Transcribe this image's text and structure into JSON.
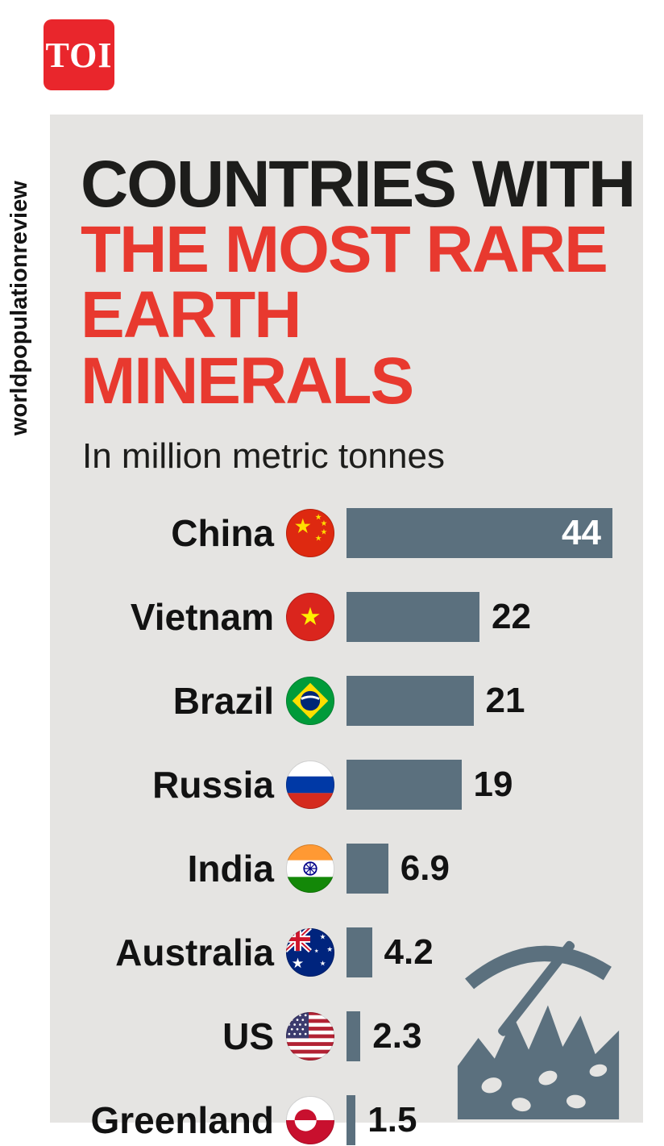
{
  "branding": {
    "logo_text": "TOI",
    "source_vertical": "worldpopulationreview"
  },
  "colors": {
    "bar": "#5b707e",
    "accent_red": "#e8392f",
    "panel_bg": "#e5e4e2",
    "logo_bg": "#e9262c",
    "text": "#1d1d1b"
  },
  "chart_data": {
    "type": "bar",
    "orientation": "horizontal",
    "title_line1": "COUNTRIES WITH",
    "title_line2": "THE MOST RARE",
    "title_line3": "EARTH MINERALS",
    "subtitle": "In million metric tonnes",
    "unit": "million metric tonnes",
    "xlim": [
      0,
      44
    ],
    "max_value": 44,
    "categories": [
      "China",
      "Vietnam",
      "Brazil",
      "Russia",
      "India",
      "Australia",
      "US",
      "Greenland"
    ],
    "values": [
      44,
      22,
      21,
      19,
      6.9,
      4.2,
      2.3,
      1.5
    ],
    "rows": [
      {
        "country": "China",
        "value": 44,
        "display": "44",
        "flag": "china-flag-icon",
        "value_position": "inside"
      },
      {
        "country": "Vietnam",
        "value": 22,
        "display": "22",
        "flag": "vietnam-flag-icon",
        "value_position": "outside"
      },
      {
        "country": "Brazil",
        "value": 21,
        "display": "21",
        "flag": "brazil-flag-icon",
        "value_position": "outside"
      },
      {
        "country": "Russia",
        "value": 19,
        "display": "19",
        "flag": "russia-flag-icon",
        "value_position": "outside"
      },
      {
        "country": "India",
        "value": 6.9,
        "display": "6.9",
        "flag": "india-flag-icon",
        "value_position": "outside"
      },
      {
        "country": "Australia",
        "value": 4.2,
        "display": "4.2",
        "flag": "australia-flag-icon",
        "value_position": "outside"
      },
      {
        "country": "US",
        "value": 2.3,
        "display": "2.3",
        "flag": "us-flag-icon",
        "value_position": "outside"
      },
      {
        "country": "Greenland",
        "value": 1.5,
        "display": "1.5",
        "flag": "greenland-flag-icon",
        "value_position": "outside"
      }
    ]
  }
}
